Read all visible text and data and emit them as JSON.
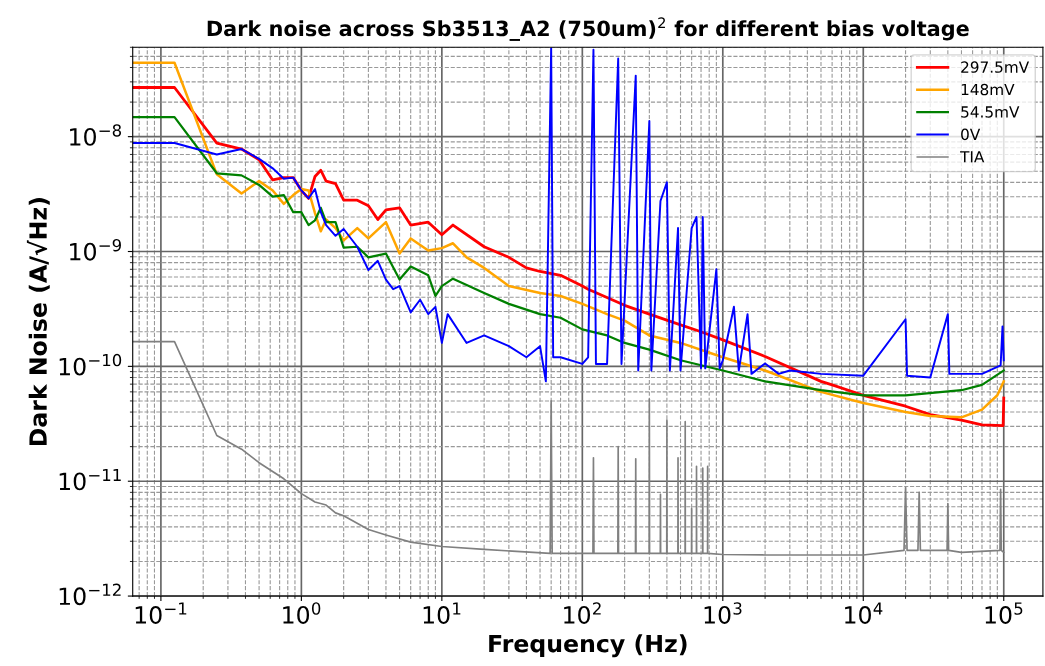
{
  "chart_data": {
    "type": "line",
    "title": "Dark noise across Sb3513_A2 (750um)$^{2}$ for different bias voltage",
    "xlabel": "Frequency (Hz)",
    "ylabel": "Dark Noise (A/√Hz)",
    "log": "xy",
    "grid": true,
    "legend": "top right",
    "marker": "none",
    "line_style": "solid",
    "xlim": [
      0.063,
      190000
    ],
    "ylim": [
      1e-12,
      6e-08
    ],
    "xticks": [
      {
        "value": 0.1,
        "label": "10$^{−1}$"
      },
      {
        "value": 1,
        "label": "10$^{0}$"
      },
      {
        "value": 10,
        "label": "10$^{1}$"
      },
      {
        "value": 100,
        "label": "10$^{2}$"
      },
      {
        "value": 1000,
        "label": "10$^{3}$"
      },
      {
        "value": 10000,
        "label": "10$^{4}$"
      },
      {
        "value": 100000,
        "label": "10$^{5}$"
      }
    ],
    "yticks": [
      {
        "value": 1e-12,
        "label": "10$^{−12}$"
      },
      {
        "value": 1e-11,
        "label": "10$^{−11}$"
      },
      {
        "value": 1e-10,
        "label": "10$^{−10}$"
      },
      {
        "value": 1e-09,
        "label": "10$^{−9}$"
      },
      {
        "value": 1e-08,
        "label": "10$^{−8}$"
      }
    ],
    "series": [
      {
        "name": "297.5mV",
        "color": "#ff0000",
        "x": [
          0.063,
          0.125,
          0.25,
          0.375,
          0.5,
          0.625,
          0.75,
          0.875,
          1,
          1.125,
          1.25,
          1.375,
          1.5,
          1.75,
          2,
          2.5,
          3,
          3.5,
          4,
          5,
          6,
          8,
          10,
          12,
          20,
          30,
          40,
          50,
          70,
          100,
          110,
          200,
          300,
          500,
          700,
          1000,
          2000,
          5000,
          6000,
          10000,
          20000,
          30000,
          50000,
          70000,
          99000,
          100000
        ],
        "values": [
          2.68e-08,
          2.68e-08,
          8.8e-09,
          7.8e-09,
          6.3e-09,
          4.2e-09,
          4.4e-09,
          4.4e-09,
          3.4e-09,
          2.9e-09,
          4.5e-09,
          5.1e-09,
          4.1e-09,
          3.9e-09,
          2.8e-09,
          2.8e-09,
          2.5e-09,
          1.9e-09,
          2.3e-09,
          2.4e-09,
          1.7e-09,
          1.8e-09,
          1.4e-09,
          1.7e-09,
          1.1e-09,
          8.9e-10,
          7.2e-10,
          6.7e-10,
          6.2e-10,
          5e-10,
          4.7e-10,
          3.4e-10,
          2.85e-10,
          2.3e-10,
          2e-10,
          1.7e-10,
          1.22e-10,
          7.4e-11,
          6.9e-11,
          5.6e-11,
          4.5e-11,
          3.8e-11,
          3.4e-11,
          3.1e-11,
          3.05e-11,
          5.3e-11
        ]
      },
      {
        "name": "148mV",
        "color": "#ffa500",
        "x": [
          0.063,
          0.125,
          0.25,
          0.375,
          0.5,
          0.625,
          0.75,
          0.875,
          1,
          1.125,
          1.25,
          1.375,
          1.5,
          1.75,
          2,
          2.5,
          3,
          4,
          5,
          6,
          8,
          10,
          12,
          15,
          20,
          30,
          50,
          70,
          100,
          150,
          200,
          300,
          500,
          1000,
          2000,
          5000,
          10000,
          20000,
          30000,
          50000,
          70000,
          90000,
          100000
        ],
        "values": [
          4.4e-08,
          4.4e-08,
          4.7e-09,
          3.2e-09,
          4.1e-09,
          3.4e-09,
          2.6e-09,
          3.1e-09,
          3.5e-09,
          3.4e-09,
          2.16e-09,
          1.5e-09,
          1.9e-09,
          1.6e-09,
          1.25e-09,
          1.6e-09,
          1.3e-09,
          1.8e-09,
          9.6e-10,
          1.3e-09,
          1.02e-09,
          1.07e-09,
          1.18e-09,
          8.9e-10,
          7.2e-10,
          5e-10,
          4.35e-10,
          4.1e-10,
          3.5e-10,
          2.85e-10,
          2.5e-10,
          1.86e-10,
          1.6e-10,
          1.2e-10,
          9.2e-11,
          6e-11,
          4.8e-11,
          4e-11,
          3.7e-11,
          3.6e-11,
          4.2e-11,
          5.6e-11,
          7.4e-11
        ]
      },
      {
        "name": "54.5mV",
        "color": "#008000",
        "x": [
          0.063,
          0.125,
          0.25,
          0.375,
          0.5,
          0.625,
          0.75,
          0.875,
          1,
          1.125,
          1.25,
          1.375,
          1.5,
          1.75,
          2,
          2.5,
          3,
          4,
          5,
          6,
          8,
          9,
          10,
          12,
          20,
          30,
          50,
          70,
          100,
          150,
          200,
          300,
          500,
          1000,
          2000,
          5000,
          10000,
          20000,
          50000,
          70000,
          100000
        ],
        "values": [
          1.48e-08,
          1.48e-08,
          4.8e-09,
          4.6e-09,
          3.8e-09,
          3e-09,
          3.1e-09,
          2.2e-09,
          2.2e-09,
          1.7e-09,
          1.87e-09,
          2.4e-09,
          1.8e-09,
          1.8e-09,
          1.08e-09,
          1.1e-09,
          8.9e-10,
          9.6e-10,
          5.7e-10,
          7.4e-10,
          6.2e-10,
          4.1e-10,
          5e-10,
          5.8e-10,
          4.35e-10,
          3.5e-10,
          2.85e-10,
          2.65e-10,
          2.1e-10,
          1.86e-10,
          1.6e-10,
          1.4e-10,
          1.13e-10,
          9.2e-11,
          7.4e-11,
          6.2e-11,
          5.6e-11,
          5.6e-11,
          6.2e-11,
          6.9e-11,
          9.2e-11
        ]
      },
      {
        "name": "0V",
        "color": "#0000ff",
        "x": [
          0.063,
          0.125,
          0.25,
          0.375,
          0.5,
          0.625,
          0.75,
          0.875,
          1,
          1.125,
          1.25,
          1.375,
          1.5,
          1.75,
          2,
          2.5,
          3,
          3.5,
          4,
          4.5,
          5,
          6,
          7,
          8,
          9,
          10,
          11,
          15,
          20,
          30,
          40,
          50,
          55,
          60,
          62,
          70,
          100,
          110,
          120,
          125,
          150,
          180,
          190,
          240,
          250,
          300,
          310,
          360,
          400,
          420,
          480,
          500,
          600,
          650,
          700,
          720,
          750,
          900,
          950,
          1000,
          1200,
          1300,
          1500,
          1600,
          2000,
          2500,
          3000,
          5000,
          10000,
          20000,
          20500,
          30000,
          40000,
          41000,
          70000,
          95000,
          98000,
          100000
        ],
        "values": [
          8.8e-09,
          8.8e-09,
          7e-09,
          7.8e-09,
          6.4e-09,
          5.3e-09,
          4.3e-09,
          4.4e-09,
          3.4e-09,
          2.9e-09,
          3.5e-09,
          2.2e-09,
          1.7e-09,
          1.37e-09,
          1.57e-09,
          1.1e-09,
          6.9e-10,
          8.3e-10,
          5.7e-10,
          4.7e-10,
          5e-10,
          2.95e-10,
          3.8e-10,
          2.85e-10,
          3.3e-10,
          1.6e-10,
          2.85e-10,
          1.6e-10,
          1.86e-10,
          1.5e-10,
          1.2e-10,
          1.5e-10,
          7.4e-11,
          5.9e-08,
          1.2e-10,
          1.2e-10,
          1.05e-10,
          1.2e-10,
          5.7e-08,
          1.05e-10,
          1.05e-10,
          4.8e-08,
          1.05e-10,
          3.4e-08,
          9.2e-11,
          1.37e-08,
          9.2e-11,
          2.75e-09,
          4e-09,
          9.2e-11,
          1.6e-09,
          9.2e-11,
          1.6e-09,
          2e-09,
          9.6e-11,
          2e-09,
          9.6e-11,
          7e-10,
          9.6e-11,
          1.13e-10,
          3.3e-10,
          9.2e-11,
          2.85e-10,
          8.6e-11,
          1.06e-10,
          8.6e-11,
          9.2e-11,
          8.6e-11,
          8.3e-11,
          2.57e-10,
          8.3e-11,
          8e-11,
          2.85e-10,
          8.6e-11,
          8.6e-11,
          1.02e-10,
          2.23e-10,
          1.13e-10
        ]
      },
      {
        "name": "TIA",
        "color": "#808080",
        "x": [
          0.063,
          0.125,
          0.25,
          0.375,
          0.5,
          0.75,
          1,
          1.25,
          1.5,
          1.75,
          2,
          3,
          4,
          6,
          10,
          20,
          59,
          60,
          61,
          119,
          120,
          121,
          179,
          180,
          181,
          239,
          240,
          241,
          299,
          300,
          301,
          359,
          360,
          361,
          399,
          400,
          401,
          479,
          480,
          481,
          539,
          540,
          541,
          599,
          600,
          601,
          649,
          650,
          651,
          719,
          720,
          721,
          779,
          780,
          781,
          1000,
          2000,
          5000,
          10000,
          19500,
          20000,
          20500,
          24500,
          25000,
          25500,
          39500,
          40000,
          40500,
          50000,
          94000,
          95000,
          96000,
          100000
        ],
        "values": [
          1.64e-10,
          1.64e-10,
          2.5e-11,
          1.9e-11,
          1.45e-11,
          1.05e-11,
          7.8e-12,
          6.6e-12,
          6.2e-12,
          5.3e-12,
          5e-12,
          3.8e-12,
          3.4e-12,
          2.95e-12,
          2.7e-12,
          2.55e-12,
          2.35e-12,
          5e-11,
          2.35e-12,
          2.35e-12,
          1.6e-11,
          2.35e-12,
          2.35e-12,
          2e-11,
          2.35e-12,
          2.35e-12,
          1.57e-11,
          2.35e-12,
          2.35e-12,
          5.2e-11,
          2.35e-12,
          2.35e-12,
          7.7e-12,
          2.35e-12,
          2.35e-12,
          3.4e-11,
          2.35e-12,
          2.35e-12,
          1.6e-11,
          2.35e-12,
          2.35e-12,
          3.3e-11,
          2.35e-12,
          2.35e-12,
          5.8e-12,
          2.35e-12,
          2.35e-12,
          1.35e-11,
          2.35e-12,
          2.35e-12,
          1.3e-11,
          2.35e-12,
          2.35e-12,
          1.35e-11,
          2.35e-12,
          2.3e-12,
          2.28e-12,
          2.28e-12,
          2.28e-12,
          2.5e-12,
          8.8e-12,
          2.5e-12,
          2.5e-12,
          8e-12,
          2.5e-12,
          2.5e-12,
          6.4e-12,
          2.5e-12,
          2.4e-12,
          2.5e-12,
          8.5e-12,
          2.5e-12,
          2.4e-12
        ]
      }
    ]
  }
}
